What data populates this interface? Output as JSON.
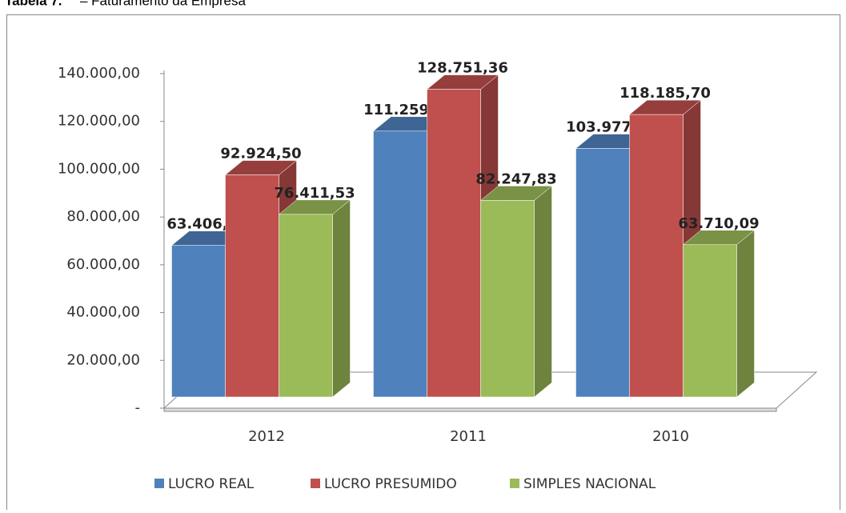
{
  "caption_label": "Tabela 7.",
  "caption": "– Faturamento da Empresa",
  "chart_data": {
    "type": "bar3d",
    "categories": [
      "2012",
      "2011",
      "2010"
    ],
    "series": [
      {
        "name": "LUCRO REAL",
        "color": "#4f81bd",
        "values": [
          63406.45,
          111259.27,
          103977.28
        ],
        "value_labels": [
          "63.406,45",
          "111.259,27",
          "103.977,28"
        ]
      },
      {
        "name": "LUCRO PRESUMIDO",
        "color": "#c0504d",
        "values": [
          92924.5,
          128751.36,
          118185.7
        ],
        "value_labels": [
          "92.924,50",
          "128.751,36",
          "118.185,70"
        ]
      },
      {
        "name": "SIMPLES NACIONAL",
        "color": "#9bbb59",
        "values": [
          76411.53,
          82247.83,
          63710.09
        ],
        "value_labels": [
          "76.411,53",
          "82.247,83",
          "63.710,09"
        ]
      }
    ],
    "ylim": [
      0,
      140000
    ],
    "yticks": [
      {
        "value": 0,
        "label": "-"
      },
      {
        "value": 20000,
        "label": "20.000,00"
      },
      {
        "value": 40000,
        "label": "40.000,00"
      },
      {
        "value": 60000,
        "label": "60.000,00"
      },
      {
        "value": 80000,
        "label": "80.000,00"
      },
      {
        "value": 100000,
        "label": "100.000,00"
      },
      {
        "value": 120000,
        "label": "120.000,00"
      },
      {
        "value": 140000,
        "label": "140.000,00"
      }
    ],
    "grid": false,
    "legend": "bottom"
  }
}
